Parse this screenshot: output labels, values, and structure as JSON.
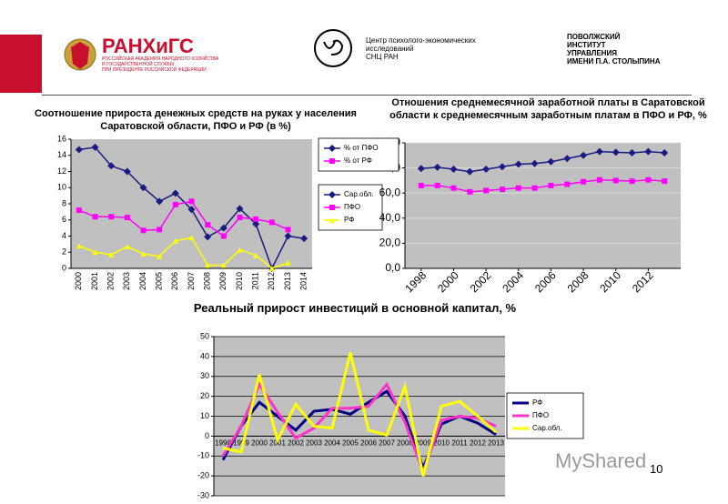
{
  "header": {
    "logo_name": "РАНХиГС",
    "logo_subtitle": [
      "РОССИЙСКАЯ АКАДЕМИЯ НАРОДНОГО ХОЗЯЙСТВА",
      "И ГОСУДАРСТВЕННОЙ СЛУЖБЫ",
      "ПРИ ПРЕЗИДЕНТЕ РОССИЙСКОЙ ФЕДЕРАЦИИ"
    ],
    "center_lines": [
      "Центр психолого-экономических",
      "исследований",
      "СНЦ РАН"
    ],
    "right_lines": [
      "ПОВОЛЖСКИЙ",
      "ИНСТИТУТ",
      "УПРАВЛЕНИЯ",
      "ИМЕНИ П.А. СТОЛЫПИНА"
    ]
  },
  "chart_data": [
    {
      "type": "line",
      "title": "Соотношение прироста денежных средств на руках у населения Саратовской области, ПФО и РФ (в %)",
      "categories": [
        "2000",
        "2001",
        "2002",
        "2003",
        "2004",
        "2005",
        "2006",
        "2007",
        "2008",
        "2009",
        "2010",
        "2011",
        "2012",
        "2013",
        "2014"
      ],
      "series": [
        {
          "name": "Сар.обл.",
          "color": "#1a1a80",
          "marker": "diamond",
          "values": [
            14.7,
            15.0,
            12.7,
            12.0,
            10.0,
            8.3,
            9.3,
            7.3,
            3.9,
            5.0,
            7.4,
            5.5,
            0.0,
            4.0,
            3.7
          ]
        },
        {
          "name": "ПФО",
          "color": "#ff00ff",
          "marker": "square",
          "values": [
            7.2,
            6.4,
            6.4,
            6.3,
            4.7,
            4.8,
            7.9,
            8.3,
            5.4,
            4.0,
            6.3,
            6.1,
            5.7,
            4.8,
            null
          ]
        },
        {
          "name": "РФ",
          "color": "#ffff00",
          "marker": "triangle",
          "values": [
            2.8,
            2.0,
            1.7,
            2.7,
            1.8,
            1.5,
            3.4,
            3.8,
            0.4,
            0.4,
            2.3,
            1.6,
            0.0,
            0.7,
            null
          ]
        }
      ],
      "ylim": [
        0,
        16
      ],
      "yticks": [
        0,
        2,
        4,
        6,
        8,
        10,
        12,
        14,
        16
      ],
      "grid": false
    },
    {
      "type": "line",
      "title": "Отношения среднемесячной заработной платы в Саратовской области к среднемесячным заработным платам в ПФО и РФ, %",
      "x": [
        1998,
        1999,
        2000,
        2001,
        2002,
        2003,
        2004,
        2005,
        2006,
        2007,
        2008,
        2009,
        2010,
        2011,
        2012,
        2013
      ],
      "series": [
        {
          "name": "% от ПФО",
          "color": "#1a1a80",
          "marker": "diamond",
          "values": [
            79.5,
            80.5,
            79,
            77,
            79,
            81,
            83,
            83.5,
            85,
            87.5,
            90,
            93,
            92.5,
            92,
            93,
            92
          ]
        },
        {
          "name": "% от РФ",
          "color": "#ff00ff",
          "marker": "square",
          "values": [
            66,
            66,
            64,
            61,
            62,
            63,
            64,
            64,
            66,
            67,
            69,
            70.5,
            70,
            69.5,
            70.5,
            69.5
          ]
        }
      ],
      "xlim": [
        1997,
        2014
      ],
      "xticks": [
        1998,
        2000,
        2002,
        2004,
        2006,
        2008,
        2010,
        2012
      ],
      "ylim": [
        0,
        100
      ],
      "yticks": [
        {
          "value": 0,
          "label": "0,0"
        },
        {
          "value": 20,
          "label": "20,0"
        },
        {
          "value": 40,
          "label": "40,0"
        },
        {
          "value": 60,
          "label": "60,0"
        },
        {
          "value": 80,
          "label": "80,0"
        },
        {
          "value": 100,
          "label": "100,0"
        }
      ],
      "grid": true
    },
    {
      "type": "line",
      "title": "Реальный прирост инвестиций в основной капитал, %",
      "categories": [
        "1998",
        "1999",
        "2000",
        "2001",
        "2002",
        "2003",
        "2004",
        "2005",
        "2006",
        "2007",
        "2008",
        "2009",
        "2010",
        "2011",
        "2012",
        "2013"
      ],
      "series": [
        {
          "name": "РФ",
          "color": "#000080",
          "marker": "none",
          "values": [
            -12,
            5,
            17,
            10,
            3,
            12.5,
            13.5,
            11,
            17,
            22.5,
            10,
            -16,
            6,
            10,
            6.5,
            0.8
          ]
        },
        {
          "name": "ПФО",
          "color": "#ff33cc",
          "marker": "none",
          "values": [
            -10,
            5,
            26,
            12,
            -1,
            4,
            14,
            14,
            15,
            26,
            7,
            -18,
            8,
            10,
            9,
            5
          ]
        },
        {
          "name": "Сар.обл.",
          "color": "#ffff00",
          "marker": "none",
          "values": [
            -6,
            -8,
            31,
            -2,
            16,
            5,
            4,
            42,
            3,
            0.5,
            25,
            -20,
            15,
            17.5,
            10,
            2
          ]
        }
      ],
      "ylim": [
        -30,
        50
      ],
      "yticks": [
        -30,
        -20,
        -10,
        0,
        10,
        20,
        30,
        40,
        50
      ],
      "grid": true
    }
  ],
  "watermark": "MyShared",
  "page_number": "10"
}
